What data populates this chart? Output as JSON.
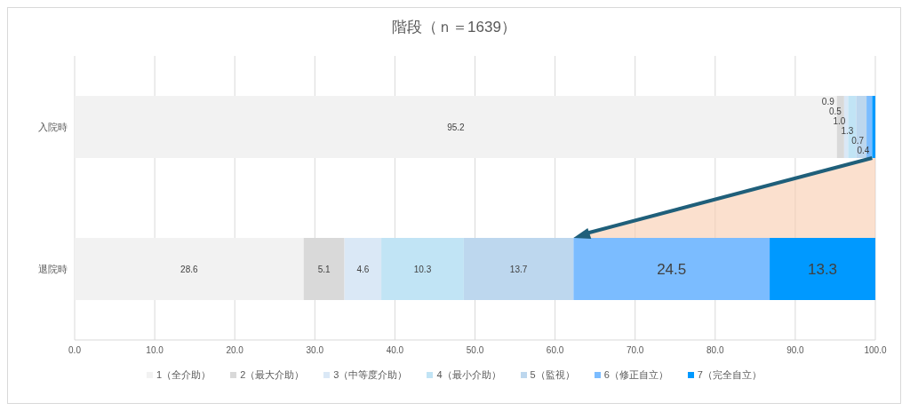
{
  "chart_data": {
    "type": "bar",
    "orientation": "horizontal",
    "stacked": true,
    "title": "階段（ｎ＝1639）",
    "categories": [
      "入院時",
      "退院時"
    ],
    "series": [
      {
        "name": "1（全介助）",
        "color": "#f2f2f2",
        "values": [
          95.2,
          28.6
        ],
        "value_labels": [
          "95.2",
          "28.6"
        ]
      },
      {
        "name": "2（最大介助）",
        "color": "#d9d9d9",
        "values": [
          0.9,
          5.1
        ],
        "value_labels": [
          "0.9",
          "5.1"
        ]
      },
      {
        "name": "3（中等度介助）",
        "color": "#dae8f6",
        "values": [
          0.5,
          4.6
        ],
        "value_labels": [
          "0.5",
          "4.6"
        ]
      },
      {
        "name": "4（最小介助）",
        "color": "#c1e4f5",
        "values": [
          1.0,
          10.3
        ],
        "value_labels": [
          "1.0",
          "10.3"
        ]
      },
      {
        "name": "5（監視）",
        "color": "#bdd7ee",
        "values": [
          1.3,
          13.7
        ],
        "value_labels": [
          "1.3",
          "13.7"
        ]
      },
      {
        "name": "6（修正自立）",
        "color": "#7bbcff",
        "values": [
          0.7,
          24.5
        ],
        "value_labels": [
          "0.7",
          "24.5"
        ]
      },
      {
        "name": "7（完全自立）",
        "color": "#0099ff",
        "values": [
          0.4,
          13.3
        ],
        "value_labels": [
          "0.4",
          "13.3"
        ]
      }
    ],
    "xlim": [
      0,
      100
    ],
    "xticks": [
      {
        "value": 0,
        "label": "0.0"
      },
      {
        "value": 10,
        "label": "10.0"
      },
      {
        "value": 20,
        "label": "20.0"
      },
      {
        "value": 30,
        "label": "30.0"
      },
      {
        "value": 40,
        "label": "40.0"
      },
      {
        "value": 50,
        "label": "50.0"
      },
      {
        "value": 60,
        "label": "60.0"
      },
      {
        "value": 70,
        "label": "70.0"
      },
      {
        "value": 80,
        "label": "80.0"
      },
      {
        "value": 90,
        "label": "90.0"
      },
      {
        "value": 100,
        "label": "100.0"
      }
    ],
    "grid": "x",
    "legend": "bottom"
  }
}
